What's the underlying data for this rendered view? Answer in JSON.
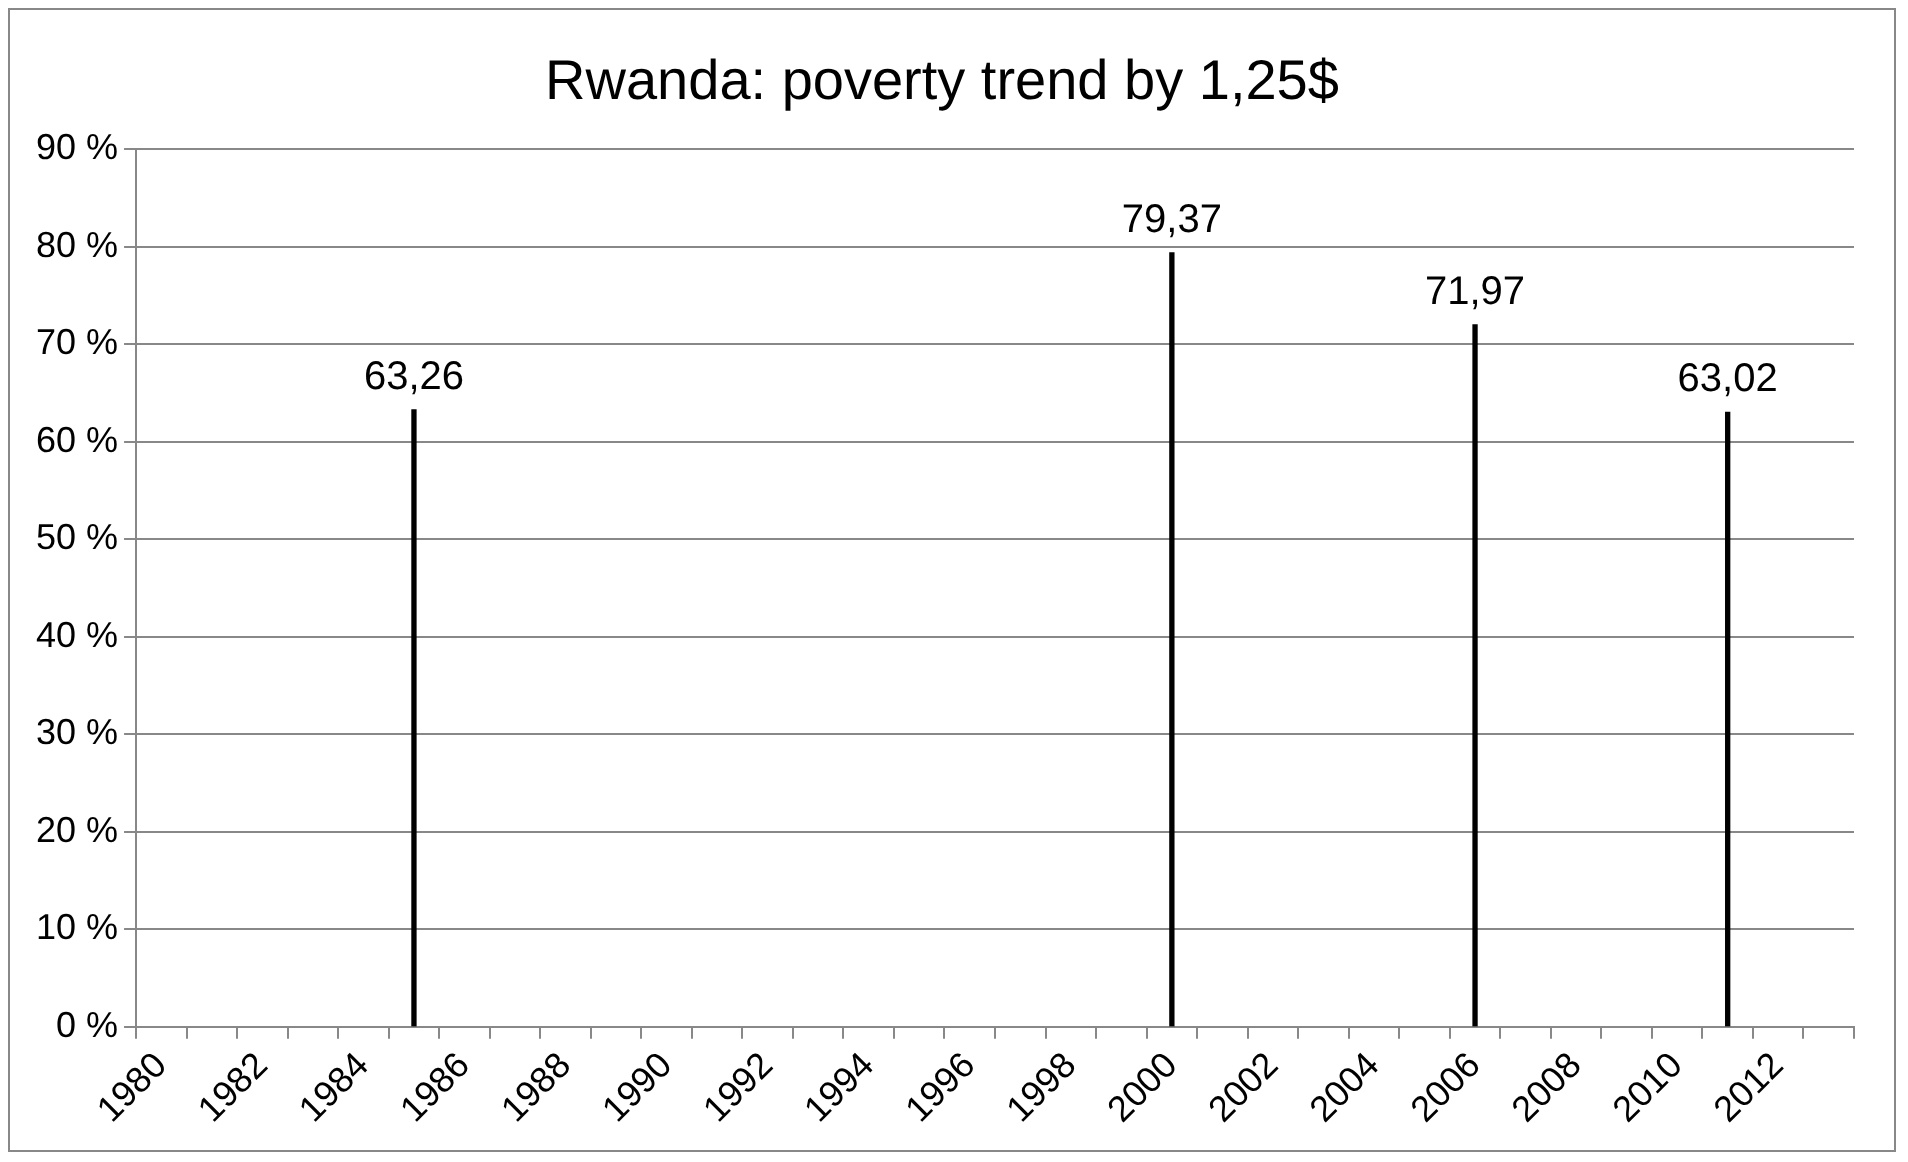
{
  "chart_data": {
    "type": "bar",
    "title": "Rwanda: poverty trend by 1,25$",
    "categories": [
      "1980",
      null,
      "1982",
      null,
      "1984",
      null,
      "1986",
      null,
      "1988",
      null,
      "1990",
      null,
      "1992",
      null,
      "1994",
      null,
      "1996",
      null,
      "1998",
      null,
      "2000",
      null,
      "2002",
      null,
      "2004",
      null,
      "2006",
      null,
      "2008",
      null,
      "2010",
      null,
      "2012",
      null
    ],
    "values": [
      null,
      null,
      null,
      null,
      null,
      63.26,
      null,
      null,
      null,
      null,
      null,
      null,
      null,
      null,
      null,
      null,
      null,
      null,
      null,
      null,
      79.37,
      null,
      null,
      null,
      null,
      null,
      71.97,
      null,
      null,
      null,
      null,
      63.02,
      null,
      null
    ],
    "value_labels": [
      null,
      null,
      null,
      null,
      null,
      "63,26",
      null,
      null,
      null,
      null,
      null,
      null,
      null,
      null,
      null,
      null,
      null,
      null,
      null,
      null,
      "79,37",
      null,
      null,
      null,
      null,
      null,
      "71,97",
      null,
      null,
      null,
      null,
      "63,02",
      null,
      null
    ],
    "color": "#000000",
    "ylim": [
      0,
      90
    ],
    "yticks": [
      {
        "value": 0,
        "label": "0 %"
      },
      {
        "value": 10,
        "label": "10 %"
      },
      {
        "value": 20,
        "label": "20 %"
      },
      {
        "value": 30,
        "label": "30 %"
      },
      {
        "value": 40,
        "label": "40 %"
      },
      {
        "value": 50,
        "label": "50 %"
      },
      {
        "value": 60,
        "label": "60 %"
      },
      {
        "value": 70,
        "label": "70 %"
      },
      {
        "value": 80,
        "label": "80 %"
      },
      {
        "value": 90,
        "label": "90 %"
      }
    ],
    "grid": "y",
    "legend": false
  }
}
